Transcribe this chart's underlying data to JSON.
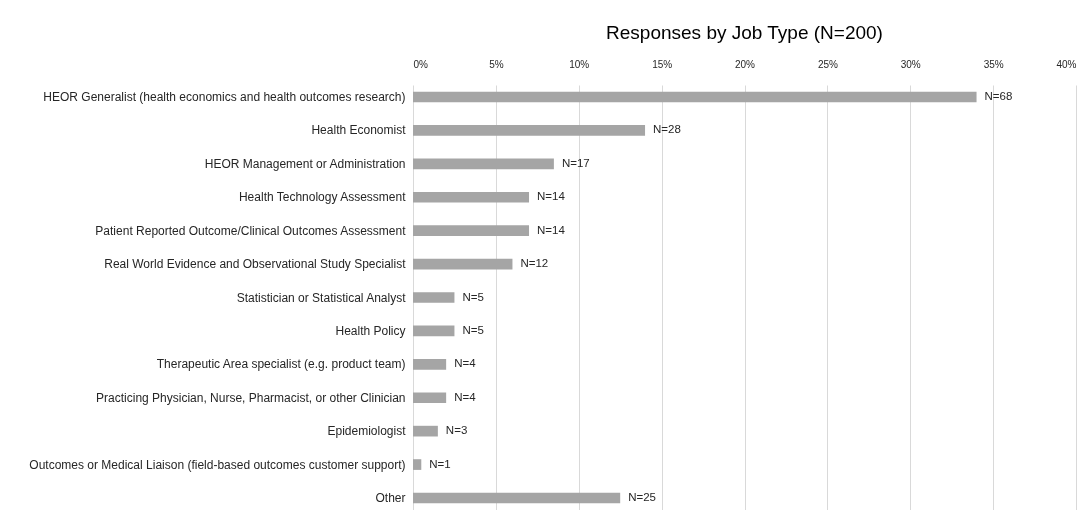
{
  "chart_data": {
    "type": "bar",
    "orientation": "horizontal",
    "title": "Responses by Job Type (N=200)",
    "categories": [
      "HEOR Generalist (health economics and health outcomes research)",
      "Health Economist",
      "HEOR Management or Administration",
      "Health Technology Assessment",
      "Patient Reported Outcome/Clinical Outcomes Assessment",
      "Real World Evidence and Observational Study Specialist",
      "Statistician or Statistical Analyst",
      "Health Policy",
      "Therapeutic Area specialist (e.g. product team)",
      "Practicing Physician, Nurse, Pharmacist, or other Clinician",
      "Epidemiologist",
      "Outcomes or Medical Liaison (field-based outcomes customer support)",
      "Other"
    ],
    "values": [
      34,
      14,
      8.5,
      7,
      7,
      6,
      2.5,
      2.5,
      2,
      2,
      1.5,
      0.5,
      12.5
    ],
    "annotations": [
      {
        "text": "N=68",
        "x": 34,
        "y": "HEOR Generalist (health economics and health outcomes research)"
      },
      {
        "text": "N=28",
        "x": 14,
        "y": "Health Economist"
      },
      {
        "text": "N=17",
        "x": 8.5,
        "y": "HEOR Management or Administration"
      },
      {
        "text": "N=14",
        "x": 7,
        "y": "Health Technology Assessment"
      },
      {
        "text": "N=14",
        "x": 7,
        "y": "Patient Reported Outcome/Clinical Outcomes Assessment"
      },
      {
        "text": "N=12",
        "x": 6,
        "y": "Real World Evidence and Observational Study Specialist"
      },
      {
        "text": "N=5",
        "x": 2.5,
        "y": "Statistician or Statistical Analyst"
      },
      {
        "text": "N=5",
        "x": 2.5,
        "y": "Health Policy"
      },
      {
        "text": "N=4",
        "x": 2,
        "y": "Therapeutic Area specialist (e.g. product team)"
      },
      {
        "text": "N=4",
        "x": 2,
        "y": "Practicing Physician, Nurse, Pharmacist, or other Clinician"
      },
      {
        "text": "N=3",
        "x": 1.5,
        "y": "Epidemiologist"
      },
      {
        "text": "N=1",
        "x": 0.5,
        "y": "Outcomes or Medical Liaison (field-based outcomes customer support)"
      },
      {
        "text": "N=25",
        "x": 12.5,
        "y": "Other"
      }
    ],
    "color": "#a5a5a5",
    "xlim": [
      0,
      40
    ],
    "xticks": [
      {
        "value": 0,
        "label": "0%"
      },
      {
        "value": 5,
        "label": "5%"
      },
      {
        "value": 10,
        "label": "10%"
      },
      {
        "value": 15,
        "label": "15%"
      },
      {
        "value": 20,
        "label": "20%"
      },
      {
        "value": 25,
        "label": "25%"
      },
      {
        "value": 30,
        "label": "30%"
      },
      {
        "value": 35,
        "label": "35%"
      },
      {
        "value": 40,
        "label": "40%"
      }
    ],
    "grid": "x"
  }
}
